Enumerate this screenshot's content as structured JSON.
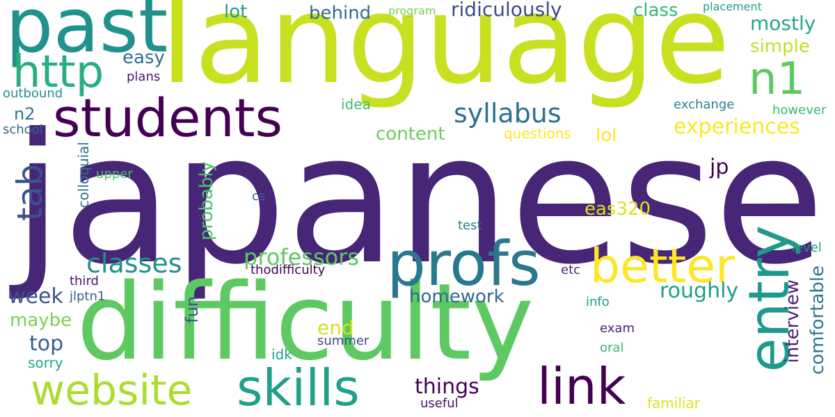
{
  "words": {
    "japanese": {
      "text": "japanese",
      "color": "#482677"
    },
    "language": {
      "text": "language",
      "color": "#c7e020"
    },
    "difficulty": {
      "text": "difficulty",
      "color": "#5ec962"
    },
    "past": {
      "text": "past",
      "color": "#21918c"
    },
    "students": {
      "text": "students",
      "color": "#440154"
    },
    "profs": {
      "text": "profs",
      "color": "#2a788e"
    },
    "http": {
      "text": "http",
      "color": "#29af7f"
    },
    "entry": {
      "text": "entry",
      "color": "#1f9a8a"
    },
    "better": {
      "text": "better",
      "color": "#fde725"
    },
    "link": {
      "text": "link",
      "color": "#440154"
    },
    "skills": {
      "text": "skills",
      "color": "#1fa187"
    },
    "website": {
      "text": "website",
      "color": "#addc30"
    },
    "n1": {
      "text": "n1",
      "color": "#5ec962"
    },
    "syllabus": {
      "text": "syllabus",
      "color": "#2c728e"
    },
    "tab": {
      "text": "tab",
      "color": "#3b528b"
    },
    "classes": {
      "text": "classes",
      "color": "#21918c"
    },
    "professors": {
      "text": "professors",
      "color": "#5ec962"
    },
    "experiences": {
      "text": "experiences",
      "color": "#fde725"
    },
    "ridiculously": {
      "text": "ridiculously",
      "color": "#3e4989"
    },
    "mostly": {
      "text": "mostly",
      "color": "#22a884"
    },
    "simple": {
      "text": "simple",
      "color": "#c2df23"
    },
    "class": {
      "text": "class",
      "color": "#35b779"
    },
    "behind": {
      "text": "behind",
      "color": "#2f6c8e"
    },
    "lot": {
      "text": "lot",
      "color": "#1f9e89"
    },
    "easy": {
      "text": "easy",
      "color": "#2e6f8e"
    },
    "content": {
      "text": "content",
      "color": "#6ccd5a"
    },
    "lol": {
      "text": "lol",
      "color": "#fde725"
    },
    "idea": {
      "text": "idea",
      "color": "#3dbc74"
    },
    "plans": {
      "text": "plans",
      "color": "#481a6c"
    },
    "outbound": {
      "text": "outbound",
      "color": "#21918c"
    },
    "n2": {
      "text": "n2",
      "color": "#2a788e"
    },
    "school": {
      "text": "school",
      "color": "#31688e"
    },
    "program": {
      "text": "program",
      "color": "#7ad151"
    },
    "placement": {
      "text": "placement",
      "color": "#1f9e89"
    },
    "exchange": {
      "text": "exchange",
      "color": "#26828e"
    },
    "however": {
      "text": "however",
      "color": "#38b977"
    },
    "questions": {
      "text": "questions",
      "color": "#fde725"
    },
    "jp": {
      "text": "jp",
      "color": "#440154"
    },
    "eas320": {
      "text": "eas320",
      "color": "#dde318"
    },
    "probably": {
      "text": "probably",
      "color": "#4ac16d"
    },
    "colloquial": {
      "text": "colloquial",
      "color": "#2c728e"
    },
    "upper": {
      "text": "upper",
      "color": "#4ac16d"
    },
    "cs": {
      "text": "cs",
      "color": "#33638d"
    },
    "test": {
      "text": "test",
      "color": "#2a788e"
    },
    "level": {
      "text": "level",
      "color": "#1f958b"
    },
    "etc": {
      "text": "etc",
      "color": "#482878"
    },
    "thodifficulty": {
      "text": "thodifficulty",
      "color": "#440154"
    },
    "third": {
      "text": "third",
      "color": "#481467"
    },
    "week": {
      "text": "week",
      "color": "#3b528b"
    },
    "jlptn1": {
      "text": "jlptn1",
      "color": "#355f8d"
    },
    "homework": {
      "text": "homework",
      "color": "#31688e"
    },
    "roughly": {
      "text": "roughly",
      "color": "#1f9e89"
    },
    "comfortable": {
      "text": "comfortable",
      "color": "#2a788e"
    },
    "interview": {
      "text": "interview",
      "color": "#482475"
    },
    "info": {
      "text": "info",
      "color": "#1f9e89"
    },
    "fun": {
      "text": "fun",
      "color": "#3b528b"
    },
    "maybe": {
      "text": "maybe",
      "color": "#7ad151"
    },
    "end": {
      "text": "end",
      "color": "#d0e11c"
    },
    "top": {
      "text": "top",
      "color": "#355f8d"
    },
    "exam": {
      "text": "exam",
      "color": "#481f70"
    },
    "summer": {
      "text": "summer",
      "color": "#3e4989"
    },
    "idk": {
      "text": "idk",
      "color": "#1fa187"
    },
    "sorry": {
      "text": "sorry",
      "color": "#22a884"
    },
    "oral": {
      "text": "oral",
      "color": "#35b779"
    },
    "things": {
      "text": "things",
      "color": "#440154"
    },
    "useful": {
      "text": "useful",
      "color": "#471063"
    },
    "familiar": {
      "text": "familiar",
      "color": "#dde318"
    }
  }
}
